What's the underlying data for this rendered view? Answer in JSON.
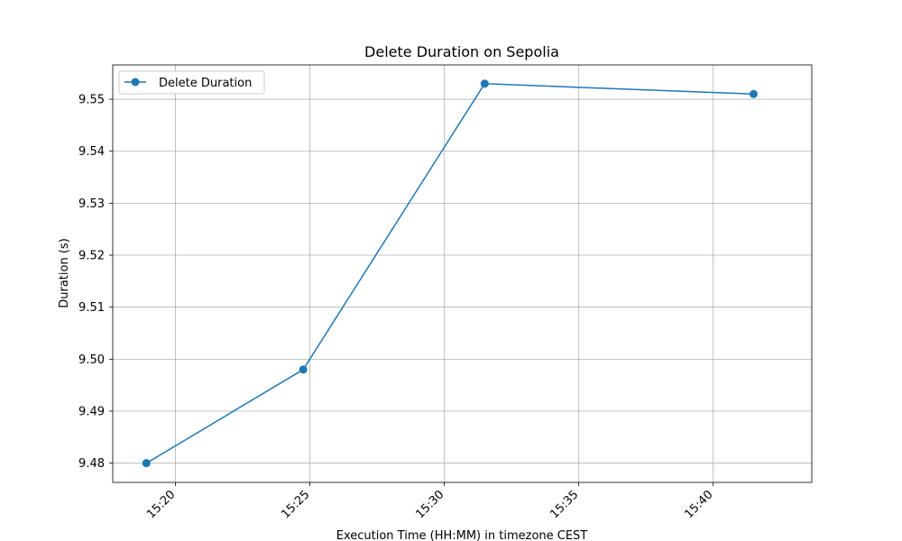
{
  "chart_data": {
    "type": "line",
    "title": "Delete Duration on Sepolia",
    "xlabel": "Execution Time (HH:MM) in timezone CEST",
    "ylabel": "Duration (s)",
    "x_ticks": [
      "15:20",
      "15:25",
      "15:30",
      "15:35",
      "15:40"
    ],
    "y_ticks": [
      "9.48",
      "9.49",
      "9.50",
      "9.51",
      "9.52",
      "9.53",
      "9.54",
      "9.55"
    ],
    "xlim": [
      "15:17:40",
      "15:43:40"
    ],
    "ylim": [
      9.4763,
      9.5566
    ],
    "grid": true,
    "legend_position": "upper-left",
    "series": [
      {
        "name": "Delete Duration",
        "color": "#1f77b4",
        "marker": "circle",
        "x": [
          "15:18:55",
          "15:24:45",
          "15:31:30",
          "15:41:30"
        ],
        "y": [
          9.48,
          9.498,
          9.553,
          9.551
        ]
      }
    ]
  }
}
